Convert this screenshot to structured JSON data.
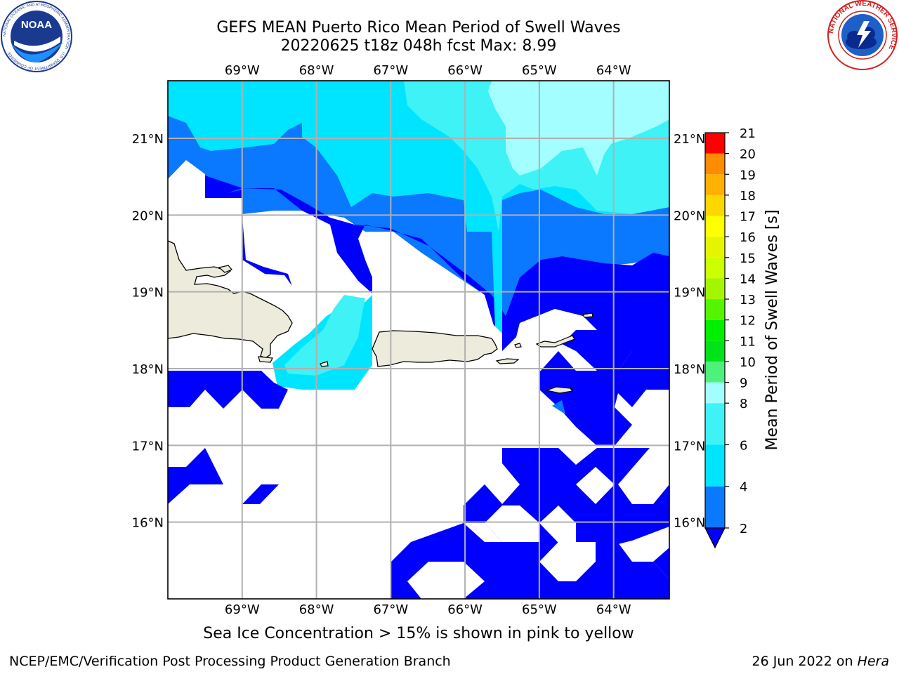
{
  "titles": {
    "line1": "GEFS MEAN Puerto Rico Mean Period of Swell Waves",
    "line2": "20220625 t18z 048h fcst   Max: 8.99"
  },
  "logos": {
    "left": {
      "icon": "noaa-logo",
      "text": "NOAA",
      "ring_text": "NATIONAL OCEANIC AND ATMOSPHERIC ADMINISTRATION · U.S. DEPARTMENT OF COMMERCE"
    },
    "right": {
      "icon": "nws-logo",
      "ring_text": "NATIONAL WEATHER SERVICE"
    }
  },
  "footer": {
    "ice_note": "Sea Ice Concentration > 15% is shown in pink to yellow",
    "credit_left": "NCEP/EMC/Verification Post Processing Product Generation Branch",
    "credit_date": "26 Jun 2022 on ",
    "credit_machine": "Hera"
  },
  "chart_data": {
    "type": "heatmap",
    "title": "GEFS MEAN Puerto Rico Mean Period of Swell Waves",
    "subtitle": "20220625 t18z 048h fcst   Max: 8.99",
    "variable_max": 8.99,
    "lon_range": [
      -70.0,
      -63.25
    ],
    "lat_range": [
      15.0,
      21.75
    ],
    "lon_ticks": [
      {
        "value": -69,
        "label": "69°W"
      },
      {
        "value": -68,
        "label": "68°W"
      },
      {
        "value": -67,
        "label": "67°W"
      },
      {
        "value": -66,
        "label": "66°W"
      },
      {
        "value": -65,
        "label": "65°W"
      },
      {
        "value": -64,
        "label": "64°W"
      }
    ],
    "lat_ticks": [
      {
        "value": 21,
        "label": "21°N"
      },
      {
        "value": 20,
        "label": "20°N"
      },
      {
        "value": 19,
        "label": "19°N"
      },
      {
        "value": 18,
        "label": "18°N"
      },
      {
        "value": 17,
        "label": "17°N"
      },
      {
        "value": 16,
        "label": "16°N"
      }
    ],
    "grid": true,
    "colorbar": {
      "label": "Mean Period of Swell Waves [s]",
      "placement": "right",
      "extend": "min",
      "levels": [
        2,
        3,
        4,
        5,
        6,
        7,
        8,
        9,
        10,
        11,
        12,
        13,
        14,
        15,
        16,
        17,
        18,
        19,
        20,
        21
      ],
      "tick_labels": [
        "2",
        "4",
        "6",
        "8",
        "9",
        "10",
        "11",
        "12",
        "13",
        "14",
        "15",
        "16",
        "17",
        "18",
        "19",
        "20",
        "21"
      ],
      "colors": [
        "#0a78ff",
        "#0a78ff",
        "#00e5ff",
        "#00e5ff",
        "#3ff2f5",
        "#3ff2f5",
        "#a3ffff",
        "#4cf27a",
        "#00e31a",
        "#00f000",
        "#55f500",
        "#a3f500",
        "#ccff00",
        "#e5f500",
        "#ffff00",
        "#ffd700",
        "#ffb000",
        "#ff8c00",
        "#ff5a00",
        "#ff0000"
      ],
      "under_color": "#0000ff",
      "bands": [
        {
          "range": [
            2,
            4
          ],
          "color": "#0a78ff"
        },
        {
          "range": [
            4,
            6
          ],
          "color": "#00e5ff"
        },
        {
          "range": [
            6,
            8
          ],
          "color": "#3ff2f5"
        },
        {
          "range": [
            8,
            9
          ],
          "color": "#a3ffff"
        },
        {
          "range": [
            9,
            10
          ],
          "color": "#4cf27a"
        },
        {
          "range": [
            10,
            11
          ],
          "color": "#00e31a"
        },
        {
          "range": [
            11,
            12
          ],
          "color": "#00f000"
        },
        {
          "range": [
            12,
            13
          ],
          "color": "#55f500"
        },
        {
          "range": [
            13,
            14
          ],
          "color": "#a3f500"
        },
        {
          "range": [
            14,
            15
          ],
          "color": "#ccff00"
        },
        {
          "range": [
            15,
            16
          ],
          "color": "#e5f500"
        },
        {
          "range": [
            16,
            17
          ],
          "color": "#ffff00"
        },
        {
          "range": [
            17,
            18
          ],
          "color": "#ffd700"
        },
        {
          "range": [
            18,
            19
          ],
          "color": "#ffb000"
        },
        {
          "range": [
            19,
            20
          ],
          "color": "#ff8c00"
        },
        {
          "range": [
            20,
            21
          ],
          "color": "#ff0000"
        }
      ]
    },
    "land_color": "#ecebdc",
    "field_colors": {
      "below_2": "#0000ff",
      "2_4": "#0a78ff",
      "4_6": "#00e5ff",
      "6_8": "#3ff2f5",
      "8_9": "#a3ffff",
      "no_data": "#ffffff"
    }
  }
}
